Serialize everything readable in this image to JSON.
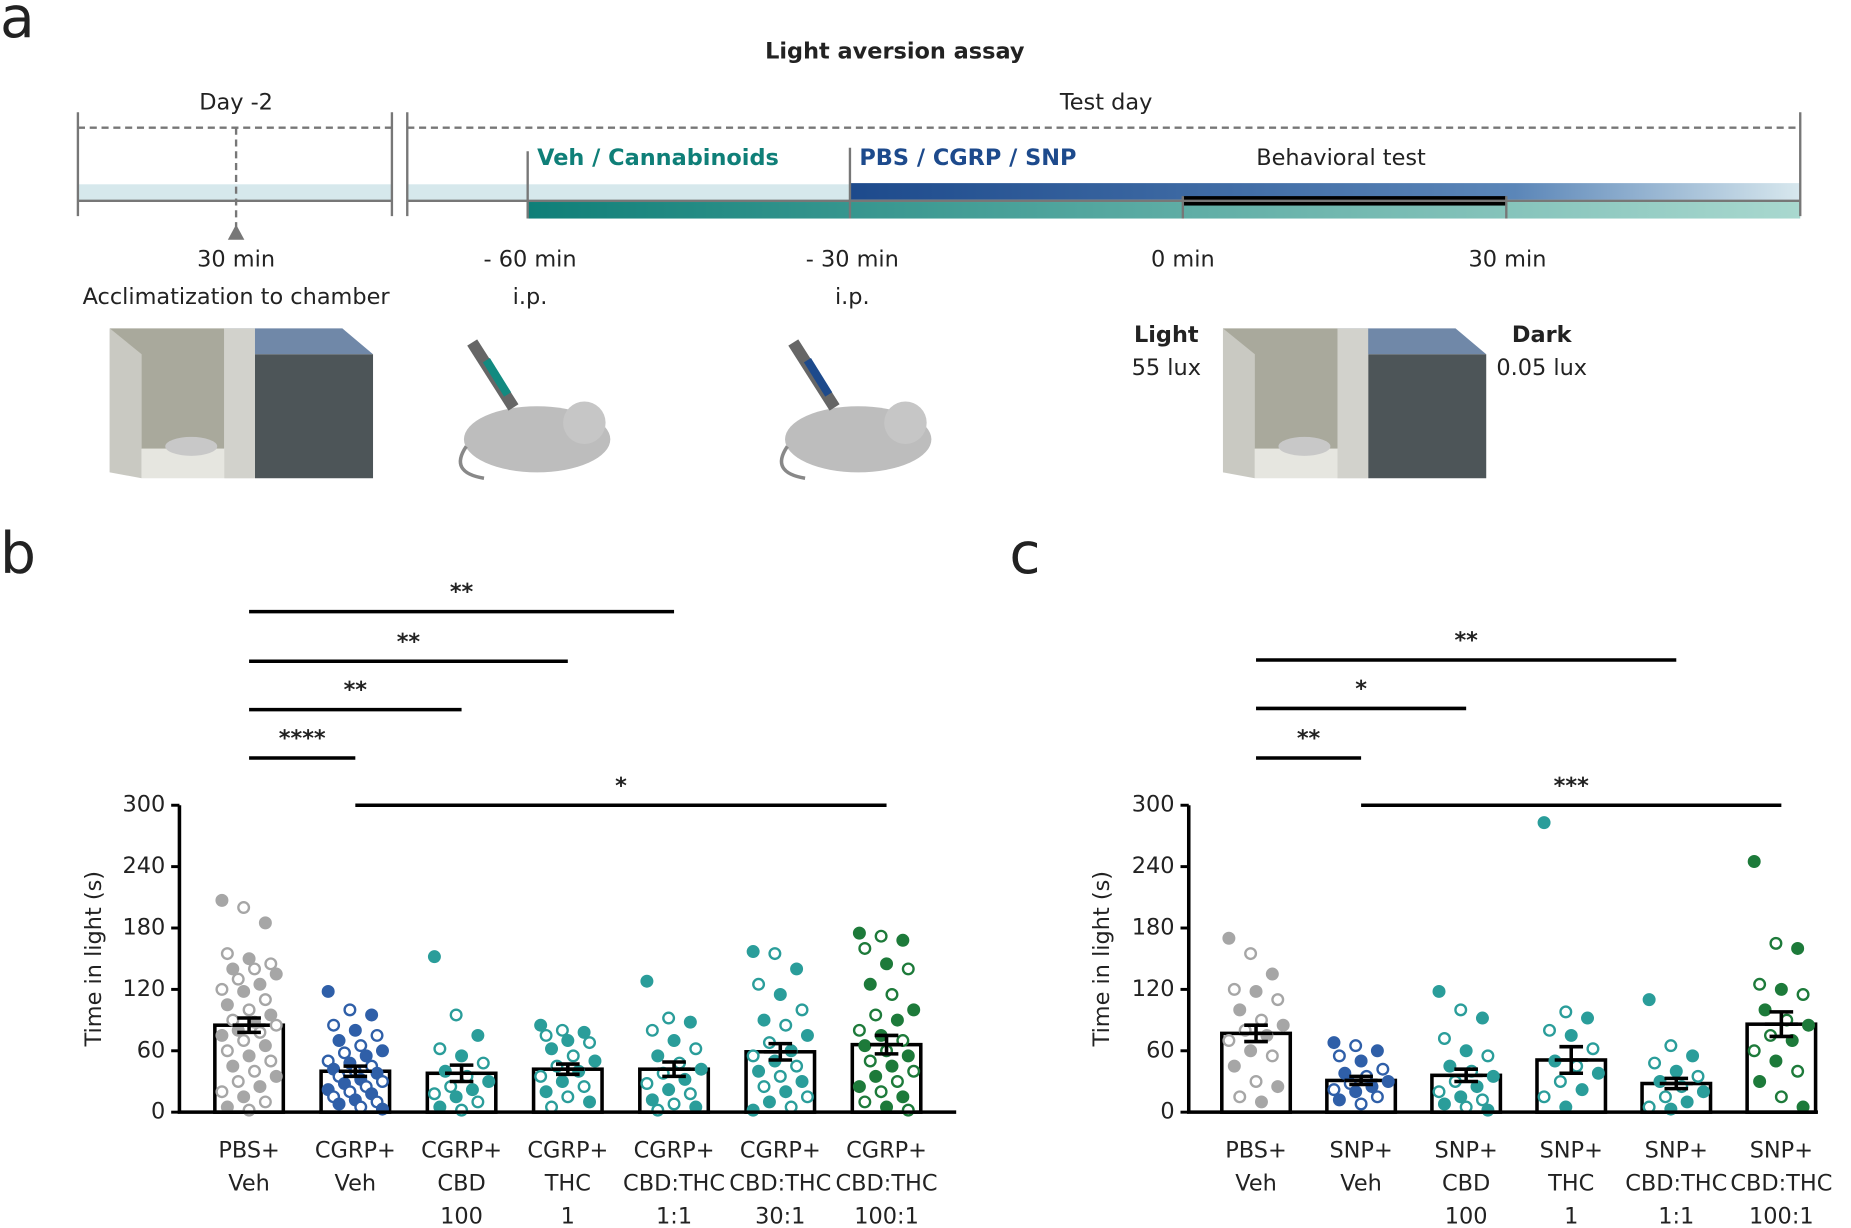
{
  "panel_a": {
    "letter": "a",
    "title": "Light aversion assay",
    "day_label": "Day -2",
    "test_label": "Test day",
    "veh_label": "Veh / Cannabinoids",
    "pbs_label": "PBS / CGRP / SNP",
    "behav_label": "Behavioral test",
    "acc_time": "30 min",
    "acc_label": "Acclimatization to chamber",
    "t1": "- 60 min",
    "t1_route": "i.p.",
    "t2": "- 30 min",
    "t2_route": "i.p.",
    "t3": "0 min",
    "t4": "30 min",
    "light": "Light",
    "light_lux": "55 lux",
    "dark": "Dark",
    "dark_lux": "0.05 lux"
  },
  "chart_data": [
    {
      "type": "bar",
      "letter": "b",
      "ylabel": "Time in light (s)",
      "ylim": [
        0,
        300
      ],
      "yticks": [
        0,
        60,
        120,
        180,
        240,
        300
      ],
      "categories": [
        [
          "PBS+",
          "Veh"
        ],
        [
          "CGRP+",
          "Veh"
        ],
        [
          "CGRP+",
          "CBD",
          "100"
        ],
        [
          "CGRP+",
          "THC",
          "1"
        ],
        [
          "CGRP+",
          "CBD:THC",
          "1:1"
        ],
        [
          "CGRP+",
          "CBD:THC",
          "30:1"
        ],
        [
          "CGRP+",
          "CBD:THC",
          "100:1"
        ]
      ],
      "means": [
        85,
        40,
        38,
        42,
        42,
        59,
        66
      ],
      "errors": [
        7,
        5,
        8,
        5,
        7,
        8,
        9
      ],
      "colors": [
        "#a6a6a6",
        "#2f5fa8",
        "#2a9d9a",
        "#2a9d9a",
        "#2a9d9a",
        "#2a9d9a",
        "#1d7a3a"
      ],
      "points": [
        [
          207,
          200,
          185,
          155,
          150,
          145,
          140,
          140,
          135,
          130,
          125,
          120,
          118,
          110,
          105,
          100,
          95,
          90,
          88,
          85,
          80,
          78,
          75,
          70,
          65,
          60,
          55,
          50,
          45,
          40,
          35,
          30,
          25,
          20,
          15,
          10,
          5,
          2
        ],
        [
          118,
          100,
          95,
          85,
          80,
          75,
          70,
          65,
          60,
          58,
          55,
          50,
          48,
          45,
          42,
          40,
          38,
          35,
          32,
          30,
          28,
          25,
          22,
          20,
          18,
          15,
          12,
          10,
          8,
          5,
          3
        ],
        [
          152,
          95,
          75,
          62,
          55,
          48,
          40,
          35,
          30,
          25,
          22,
          18,
          15,
          10,
          5,
          2
        ],
        [
          85,
          80,
          78,
          75,
          70,
          68,
          62,
          55,
          50,
          45,
          40,
          35,
          30,
          25,
          20,
          15,
          10,
          5
        ],
        [
          128,
          92,
          88,
          80,
          70,
          62,
          55,
          48,
          42,
          38,
          32,
          28,
          22,
          18,
          12,
          8,
          5,
          2
        ],
        [
          157,
          155,
          140,
          125,
          115,
          100,
          90,
          85,
          75,
          68,
          60,
          55,
          50,
          45,
          40,
          35,
          30,
          25,
          20,
          15,
          10,
          5,
          2
        ],
        [
          175,
          172,
          168,
          160,
          145,
          140,
          125,
          115,
          100,
          95,
          90,
          80,
          75,
          70,
          65,
          60,
          55,
          50,
          45,
          40,
          35,
          30,
          25,
          20,
          15,
          10,
          5,
          2
        ]
      ],
      "comparisons": [
        {
          "from": 0,
          "to": 4,
          "label": "**"
        },
        {
          "from": 0,
          "to": 3,
          "label": "**"
        },
        {
          "from": 0,
          "to": 2,
          "label": "**"
        },
        {
          "from": 0,
          "to": 1,
          "label": "****"
        },
        {
          "from": 1,
          "to": 6,
          "label": "*"
        }
      ]
    },
    {
      "type": "bar",
      "letter": "c",
      "ylabel": "Time in light (s)",
      "ylim": [
        0,
        300
      ],
      "yticks": [
        0,
        60,
        120,
        180,
        240,
        300
      ],
      "categories": [
        [
          "PBS+",
          "Veh"
        ],
        [
          "SNP+",
          "Veh"
        ],
        [
          "SNP+",
          "CBD",
          "100"
        ],
        [
          "SNP+",
          "THC",
          "1"
        ],
        [
          "SNP+",
          "CBD:THC",
          "1:1"
        ],
        [
          "SNP+",
          "CBD:THC",
          "100:1"
        ]
      ],
      "means": [
        77,
        31,
        36,
        51,
        28,
        86
      ],
      "errors": [
        8,
        4,
        6,
        13,
        5,
        12
      ],
      "colors": [
        "#a6a6a6",
        "#2f5fa8",
        "#2a9d9a",
        "#2a9d9a",
        "#2a9d9a",
        "#1d7a3a"
      ],
      "points": [
        [
          170,
          155,
          135,
          120,
          118,
          110,
          100,
          90,
          85,
          80,
          75,
          70,
          60,
          55,
          45,
          30,
          25,
          15,
          10
        ],
        [
          68,
          65,
          60,
          55,
          50,
          42,
          38,
          35,
          30,
          28,
          25,
          22,
          20,
          15,
          12,
          8
        ],
        [
          118,
          100,
          92,
          72,
          60,
          55,
          45,
          40,
          35,
          30,
          25,
          20,
          15,
          12,
          8,
          5,
          2
        ],
        [
          283,
          98,
          92,
          80,
          75,
          62,
          50,
          45,
          38,
          30,
          22,
          15,
          5
        ],
        [
          110,
          65,
          55,
          48,
          40,
          35,
          30,
          25,
          20,
          15,
          10,
          5,
          3
        ],
        [
          245,
          165,
          160,
          125,
          120,
          115,
          100,
          90,
          85,
          75,
          70,
          60,
          50,
          40,
          30,
          15,
          5
        ]
      ],
      "comparisons": [
        {
          "from": 0,
          "to": 4,
          "label": "**"
        },
        {
          "from": 0,
          "to": 2,
          "label": "*"
        },
        {
          "from": 0,
          "to": 1,
          "label": "**"
        },
        {
          "from": 1,
          "to": 5,
          "label": "***"
        }
      ]
    }
  ]
}
